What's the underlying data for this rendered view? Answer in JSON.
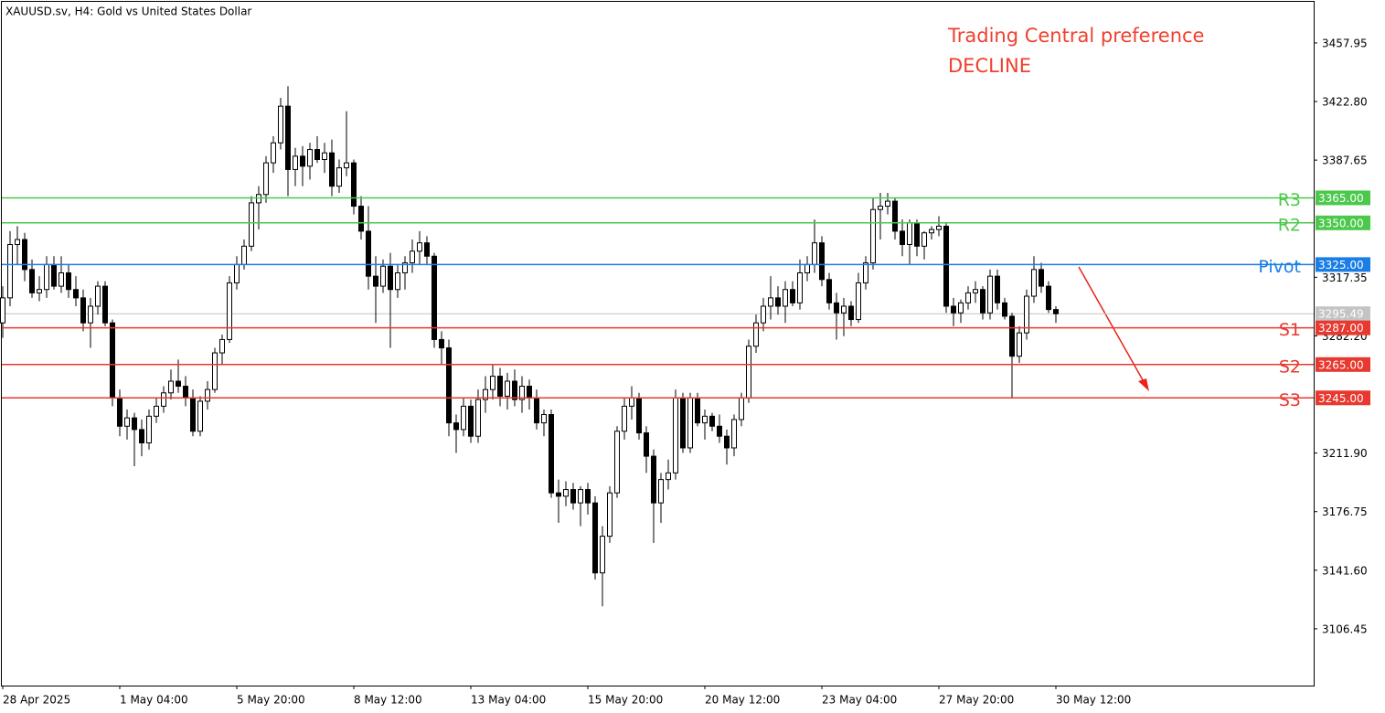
{
  "chart_data": {
    "type": "candlestick",
    "title": "XAUUSD.sv, H4:  Gold vs United States Dollar",
    "annotations": [
      "Trading Central preference",
      "DECLINE"
    ],
    "annotation_color": "#f0402e",
    "categories": [
      "28 Apr 2025",
      null,
      null,
      null,
      null,
      null,
      null,
      null,
      null,
      null,
      null,
      null,
      null,
      null,
      null,
      null,
      "1 May 04:00",
      null,
      null,
      null,
      null,
      null,
      null,
      null,
      null,
      null,
      null,
      null,
      null,
      null,
      null,
      null,
      "5 May 20:00",
      null,
      null,
      null,
      null,
      null,
      null,
      null,
      null,
      null,
      null,
      null,
      null,
      null,
      null,
      null,
      "8 May 12:00",
      null,
      null,
      null,
      null,
      null,
      null,
      null,
      null,
      null,
      null,
      null,
      null,
      null,
      null,
      null,
      "13 May 04:00",
      null,
      null,
      null,
      null,
      null,
      null,
      null,
      null,
      null,
      null,
      null,
      null,
      null,
      null,
      null,
      "15 May 20:00",
      null,
      null,
      null,
      null,
      null,
      null,
      null,
      null,
      null,
      null,
      null,
      null,
      null,
      null,
      null,
      "20 May 12:00",
      null,
      null,
      null,
      null,
      null,
      null,
      null,
      null,
      null,
      null,
      null,
      null,
      null,
      null,
      null,
      "23 May 04:00",
      null,
      null,
      null,
      null,
      null,
      null,
      null,
      null,
      null,
      null,
      null,
      null,
      null,
      null,
      null,
      "27 May 20:00",
      null,
      null,
      null,
      null,
      null,
      null,
      null,
      null,
      null,
      null,
      null,
      null,
      null,
      null,
      null,
      "30 May 12:00"
    ],
    "open": [
      3290,
      3305,
      3337,
      3340,
      3322,
      3308,
      3310,
      3325,
      3312,
      3320,
      3310,
      3305,
      3290,
      3300,
      3312,
      3290,
      3245,
      3228,
      3233,
      3226,
      3218,
      3234,
      3240,
      3248,
      3255,
      3252,
      3245,
      3225,
      3243,
      3250,
      3272,
      3280,
      3314,
      3325,
      3336,
      3362,
      3367,
      3386,
      3398,
      3420,
      3382,
      3390,
      3384,
      3394,
      3388,
      3392,
      3372,
      3383,
      3386,
      3360,
      3345,
      3318,
      3312,
      3324,
      3310,
      3320,
      3326,
      3333,
      3338,
      3330,
      3280,
      3275,
      3230,
      3226,
      3240,
      3222,
      3244,
      3250,
      3258,
      3246,
      3255,
      3244,
      3252,
      3245,
      3230,
      3235,
      3188,
      3186,
      3190,
      3182,
      3190,
      3182,
      3140,
      3162,
      3188,
      3225,
      3240,
      3245,
      3224,
      3210,
      3182,
      3196,
      3200,
      3245,
      3215,
      3245,
      3230,
      3234,
      3228,
      3222,
      3215,
      3232,
      3245,
      3276,
      3290,
      3300,
      3305,
      3300,
      3310,
      3302,
      3320,
      3325,
      3338,
      3316,
      3302,
      3296,
      3300,
      3292,
      3314,
      3326,
      3358,
      3360,
      3363,
      3345,
      3337,
      3350,
      3336,
      3344,
      3346,
      3348,
      3300,
      3296,
      3302,
      3308,
      3310,
      3296,
      3318,
      3302,
      3294,
      3270,
      3284,
      3306,
      3322,
      3312,
      3298
    ],
    "high": [
      3312,
      3345,
      3348,
      3344,
      3328,
      3318,
      3330,
      3330,
      3330,
      3325,
      3318,
      3310,
      3305,
      3315,
      3315,
      3292,
      3250,
      3238,
      3236,
      3232,
      3238,
      3245,
      3252,
      3262,
      3268,
      3258,
      3250,
      3246,
      3255,
      3275,
      3283,
      3318,
      3330,
      3340,
      3366,
      3372,
      3390,
      3402,
      3425,
      3432,
      3395,
      3396,
      3398,
      3402,
      3398,
      3400,
      3388,
      3417,
      3388,
      3366,
      3360,
      3330,
      3328,
      3332,
      3325,
      3330,
      3340,
      3345,
      3342,
      3332,
      3285,
      3280,
      3235,
      3245,
      3244,
      3250,
      3258,
      3265,
      3263,
      3260,
      3262,
      3258,
      3256,
      3250,
      3238,
      3238,
      3196,
      3195,
      3194,
      3192,
      3194,
      3186,
      3168,
      3192,
      3228,
      3245,
      3252,
      3248,
      3228,
      3214,
      3200,
      3208,
      3250,
      3248,
      3248,
      3248,
      3238,
      3236,
      3235,
      3226,
      3235,
      3248,
      3280,
      3295,
      3305,
      3318,
      3312,
      3315,
      3315,
      3328,
      3330,
      3352,
      3342,
      3320,
      3308,
      3305,
      3303,
      3320,
      3330,
      3365,
      3368,
      3368,
      3365,
      3352,
      3352,
      3352,
      3345,
      3348,
      3354,
      3350,
      3305,
      3304,
      3312,
      3315,
      3312,
      3322,
      3322,
      3305,
      3296,
      3288,
      3310,
      3330,
      3326,
      3315,
      3300
    ],
    "low": [
      3281,
      3300,
      3325,
      3315,
      3305,
      3303,
      3305,
      3310,
      3308,
      3305,
      3300,
      3285,
      3275,
      3295,
      3288,
      3240,
      3222,
      3220,
      3204,
      3210,
      3214,
      3230,
      3236,
      3244,
      3248,
      3240,
      3222,
      3222,
      3238,
      3248,
      3265,
      3278,
      3310,
      3322,
      3333,
      3346,
      3362,
      3380,
      3394,
      3366,
      3372,
      3372,
      3376,
      3386,
      3380,
      3366,
      3368,
      3378,
      3355,
      3340,
      3310,
      3290,
      3308,
      3275,
      3305,
      3310,
      3320,
      3325,
      3325,
      3275,
      3265,
      3222,
      3212,
      3222,
      3218,
      3218,
      3236,
      3244,
      3240,
      3238,
      3240,
      3236,
      3238,
      3226,
      3222,
      3185,
      3170,
      3180,
      3178,
      3168,
      3175,
      3136,
      3120,
      3158,
      3185,
      3220,
      3232,
      3220,
      3200,
      3158,
      3170,
      3190,
      3196,
      3212,
      3212,
      3228,
      3220,
      3225,
      3218,
      3205,
      3210,
      3228,
      3242,
      3272,
      3285,
      3292,
      3295,
      3290,
      3300,
      3298,
      3315,
      3320,
      3312,
      3298,
      3280,
      3282,
      3288,
      3290,
      3310,
      3322,
      3340,
      3355,
      3340,
      3330,
      3325,
      3330,
      3328,
      3340,
      3342,
      3296,
      3288,
      3290,
      3298,
      3302,
      3292,
      3292,
      3298,
      3292,
      3245,
      3266,
      3280,
      3302,
      3308,
      3296,
      3290
    ],
    "close": [
      3305,
      3337,
      3340,
      3322,
      3308,
      3310,
      3325,
      3312,
      3320,
      3310,
      3305,
      3290,
      3300,
      3312,
      3290,
      3245,
      3228,
      3233,
      3226,
      3218,
      3234,
      3240,
      3248,
      3255,
      3252,
      3245,
      3225,
      3243,
      3250,
      3272,
      3280,
      3314,
      3325,
      3336,
      3362,
      3367,
      3386,
      3398,
      3420,
      3382,
      3390,
      3384,
      3394,
      3388,
      3392,
      3372,
      3383,
      3386,
      3360,
      3345,
      3318,
      3312,
      3324,
      3310,
      3320,
      3326,
      3333,
      3338,
      3330,
      3280,
      3275,
      3230,
      3226,
      3240,
      3222,
      3244,
      3250,
      3258,
      3246,
      3255,
      3244,
      3252,
      3245,
      3230,
      3235,
      3188,
      3186,
      3190,
      3182,
      3190,
      3182,
      3140,
      3162,
      3188,
      3225,
      3240,
      3245,
      3224,
      3210,
      3182,
      3196,
      3200,
      3245,
      3215,
      3245,
      3230,
      3234,
      3228,
      3222,
      3215,
      3232,
      3245,
      3276,
      3290,
      3300,
      3305,
      3300,
      3310,
      3302,
      3320,
      3325,
      3338,
      3316,
      3302,
      3296,
      3300,
      3292,
      3314,
      3326,
      3358,
      3360,
      3363,
      3345,
      3337,
      3350,
      3336,
      3344,
      3346,
      3348,
      3300,
      3296,
      3302,
      3308,
      3310,
      3296,
      3318,
      3302,
      3294,
      3270,
      3284,
      3306,
      3322,
      3312,
      3298,
      3295.49
    ],
    "bull_color": "#ffffff",
    "bear_color": "#000000",
    "ylim": [
      3072.4,
      3482.6
    ],
    "yticks": [
      3457.95,
      {
        "value": 3422.8,
        "label": "3422.80"
      },
      3387.65,
      3317.35,
      {
        "value": 3282.2,
        "label": "3282.20"
      },
      {
        "value": 3211.9,
        "label": "3211.90"
      },
      3176.75,
      {
        "value": 3141.6,
        "label": "3141.60"
      },
      3106.45
    ],
    "last_price": 3295.49,
    "last_price_color": "#c4c4c4",
    "levels": [
      {
        "name": "R3",
        "price": {
          "value": 3365,
          "label": "3365.00"
        },
        "color": "#4cc94c"
      },
      {
        "name": "R2",
        "price": {
          "value": 3350,
          "label": "3350.00"
        },
        "color": "#4cc94c"
      },
      {
        "name": "Pivot",
        "price": {
          "value": 3325,
          "label": "3325.00"
        },
        "color": "#1a7ee6"
      },
      {
        "name": "S1",
        "price": {
          "value": 3287,
          "label": "3287.00"
        },
        "color": "#e8382f"
      },
      {
        "name": "S2",
        "price": {
          "value": 3265,
          "label": "3265.00"
        },
        "color": "#e8382f"
      },
      {
        "name": "S3",
        "price": {
          "value": 3245,
          "label": "3245.00"
        },
        "color": "#e8382f"
      }
    ]
  }
}
